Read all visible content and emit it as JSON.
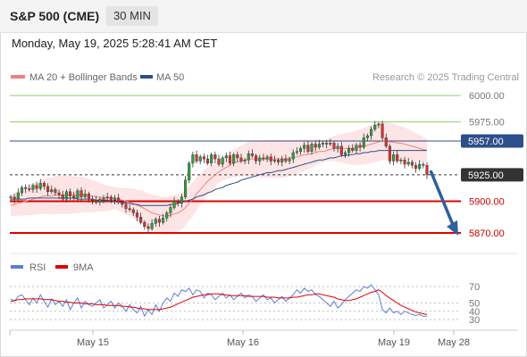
{
  "header": {
    "title": "S&P 500 (CME)",
    "timeframe": "30 MIN",
    "datetime": "Monday, May 19, 2025 5:28:41 AM CET"
  },
  "legend": {
    "ma20": "MA 20 + Bollinger Bands",
    "ma50": "MA 50",
    "credit": "Research © 2025 Trading Central",
    "rsi": "RSI",
    "rsi_ma": "9MA"
  },
  "colors": {
    "ma20": "#f08080",
    "ma50": "#2c4f8a",
    "candle_up": "#2e9e3e",
    "candle_down": "#d93030",
    "resistance": "#8fcf6a",
    "support": "#e00000",
    "arrow": "#2f5f9e",
    "rsi": "#5b7fd6",
    "rsi_ma": "#e00000"
  },
  "chart_data": [
    {
      "type": "line",
      "title": "S&P 500 (CME) 30 MIN",
      "ylim": [
        5858,
        6012
      ],
      "x_ticks": [
        "May 15",
        "May 16",
        "May 19",
        "May 28"
      ],
      "levels": [
        {
          "value": 6000.0,
          "label": "6000.00",
          "kind": "resistance"
        },
        {
          "value": 5975.0,
          "label": "5975.00",
          "kind": "resistance"
        },
        {
          "value": 5957.0,
          "label": "5957.00",
          "kind": "ma50"
        },
        {
          "value": 5925.0,
          "label": "5925.00",
          "kind": "current"
        },
        {
          "value": 5900.0,
          "label": "5900.00",
          "kind": "support"
        },
        {
          "value": 5870.0,
          "label": "5870.00",
          "kind": "support"
        }
      ],
      "close": [
        5904,
        5902,
        5908,
        5913,
        5912,
        5911,
        5915,
        5912,
        5917,
        5914,
        5909,
        5911,
        5908,
        5906,
        5902,
        5909,
        5905,
        5903,
        5910,
        5904,
        5907,
        5902,
        5901,
        5899,
        5902,
        5903,
        5904,
        5901,
        5903,
        5899,
        5897,
        5893,
        5892,
        5889,
        5885,
        5880,
        5876,
        5874,
        5879,
        5883,
        5880,
        5884,
        5889,
        5894,
        5900,
        5898,
        5904,
        5920,
        5936,
        5944,
        5938,
        5942,
        5940,
        5936,
        5944,
        5940,
        5935,
        5941,
        5943,
        5936,
        5944,
        5941,
        5938,
        5939,
        5945,
        5943,
        5938,
        5941,
        5940,
        5942,
        5938,
        5939,
        5937,
        5940,
        5938,
        5940,
        5946,
        5947,
        5950,
        5953,
        5947,
        5954,
        5951,
        5954,
        5955,
        5954,
        5955,
        5950,
        5952,
        5944,
        5946,
        5950,
        5948,
        5953,
        5951,
        5960,
        5962,
        5968,
        5972,
        5973,
        5960,
        5952,
        5938,
        5944,
        5938,
        5939,
        5935,
        5937,
        5934,
        5931,
        5935,
        5934,
        5925
      ],
      "ma20": [
        5896,
        5897,
        5898,
        5899,
        5900,
        5901,
        5902,
        5903,
        5904,
        5905,
        5905,
        5905,
        5906,
        5906,
        5906,
        5906,
        5906,
        5906,
        5906,
        5906,
        5906,
        5905,
        5905,
        5904,
        5904,
        5903,
        5903,
        5903,
        5903,
        5902,
        5901,
        5900,
        5899,
        5898,
        5896,
        5895,
        5893,
        5891,
        5889,
        5888,
        5887,
        5886,
        5886,
        5887,
        5888,
        5889,
        5891,
        5894,
        5898,
        5902,
        5907,
        5911,
        5915,
        5919,
        5922,
        5925,
        5928,
        5930,
        5932,
        5934,
        5936,
        5937,
        5938,
        5939,
        5940,
        5940,
        5940,
        5940,
        5940,
        5940,
        5940,
        5940,
        5940,
        5940,
        5940,
        5941,
        5941,
        5942,
        5943,
        5944,
        5944,
        5945,
        5946,
        5947,
        5947,
        5948,
        5949,
        5950,
        5950,
        5950,
        5950,
        5950,
        5950,
        5951,
        5951,
        5952,
        5953,
        5954,
        5955,
        5956,
        5957,
        5957,
        5956,
        5956,
        5955,
        5955,
        5954,
        5953,
        5952,
        5951,
        5950,
        5949,
        5948
      ],
      "ma50": [
        5902,
        5902,
        5902,
        5902,
        5902,
        5903,
        5903,
        5903,
        5903,
        5903,
        5903,
        5903,
        5903,
        5903,
        5903,
        5903,
        5903,
        5903,
        5902,
        5902,
        5902,
        5902,
        5902,
        5901,
        5901,
        5901,
        5901,
        5900,
        5900,
        5899,
        5899,
        5898,
        5898,
        5897,
        5897,
        5896,
        5896,
        5896,
        5896,
        5896,
        5896,
        5896,
        5896,
        5897,
        5897,
        5898,
        5899,
        5900,
        5901,
        5902,
        5904,
        5905,
        5906,
        5908,
        5909,
        5911,
        5912,
        5913,
        5915,
        5916,
        5917,
        5918,
        5920,
        5921,
        5922,
        5923,
        5924,
        5925,
        5926,
        5927,
        5927,
        5928,
        5929,
        5929,
        5930,
        5931,
        5932,
        5933,
        5934,
        5935,
        5936,
        5937,
        5938,
        5939,
        5939,
        5940,
        5941,
        5941,
        5942,
        5943,
        5943,
        5944,
        5944,
        5945,
        5945,
        5946,
        5946,
        5947,
        5947,
        5948,
        5948,
        5948,
        5948,
        5948,
        5948,
        5948,
        5948,
        5948,
        5948,
        5948,
        5948,
        5948,
        5948
      ]
    },
    {
      "type": "line",
      "title": "RSI",
      "ylim": [
        25,
        80
      ],
      "y_ticks": [
        70,
        50,
        40,
        30
      ],
      "rsi": [
        55,
        52,
        58,
        60,
        54,
        48,
        56,
        50,
        60,
        52,
        45,
        55,
        48,
        52,
        46,
        54,
        42,
        50,
        56,
        44,
        52,
        48,
        46,
        50,
        54,
        44,
        48,
        52,
        44,
        50,
        46,
        40,
        48,
        42,
        38,
        46,
        34,
        42,
        36,
        48,
        40,
        50,
        56,
        52,
        62,
        58,
        66,
        64,
        68,
        60,
        66,
        64,
        56,
        62,
        60,
        54,
        58,
        62,
        56,
        60,
        54,
        58,
        62,
        56,
        60,
        58,
        52,
        56,
        60,
        54,
        56,
        50,
        54,
        58,
        52,
        56,
        60,
        66,
        62,
        68,
        64,
        66,
        60,
        58,
        54,
        50,
        46,
        52,
        44,
        48,
        54,
        58,
        62,
        66,
        64,
        70,
        68,
        72,
        66,
        60,
        42,
        38,
        44,
        38,
        40,
        36,
        40,
        38,
        36,
        35,
        36,
        34,
        34
      ],
      "rsi_ma": [
        52,
        53,
        54,
        54,
        55,
        55,
        55,
        55,
        55,
        54,
        54,
        54,
        53,
        52,
        52,
        51,
        51,
        50,
        50,
        50,
        49,
        49,
        49,
        48,
        48,
        48,
        47,
        47,
        47,
        47,
        46,
        46,
        45,
        45,
        44,
        43,
        43,
        42,
        42,
        42,
        42,
        43,
        44,
        45,
        47,
        49,
        51,
        53,
        55,
        57,
        58,
        59,
        60,
        60,
        61,
        61,
        61,
        60,
        60,
        59,
        59,
        59,
        59,
        59,
        58,
        58,
        58,
        58,
        58,
        57,
        57,
        57,
        56,
        56,
        56,
        56,
        57,
        57,
        58,
        59,
        60,
        60,
        61,
        61,
        60,
        59,
        58,
        57,
        55,
        54,
        53,
        53,
        54,
        55,
        57,
        59,
        61,
        63,
        64,
        66,
        63,
        59,
        56,
        53,
        50,
        47,
        45,
        43,
        41,
        39,
        38,
        37,
        36
      ]
    }
  ]
}
